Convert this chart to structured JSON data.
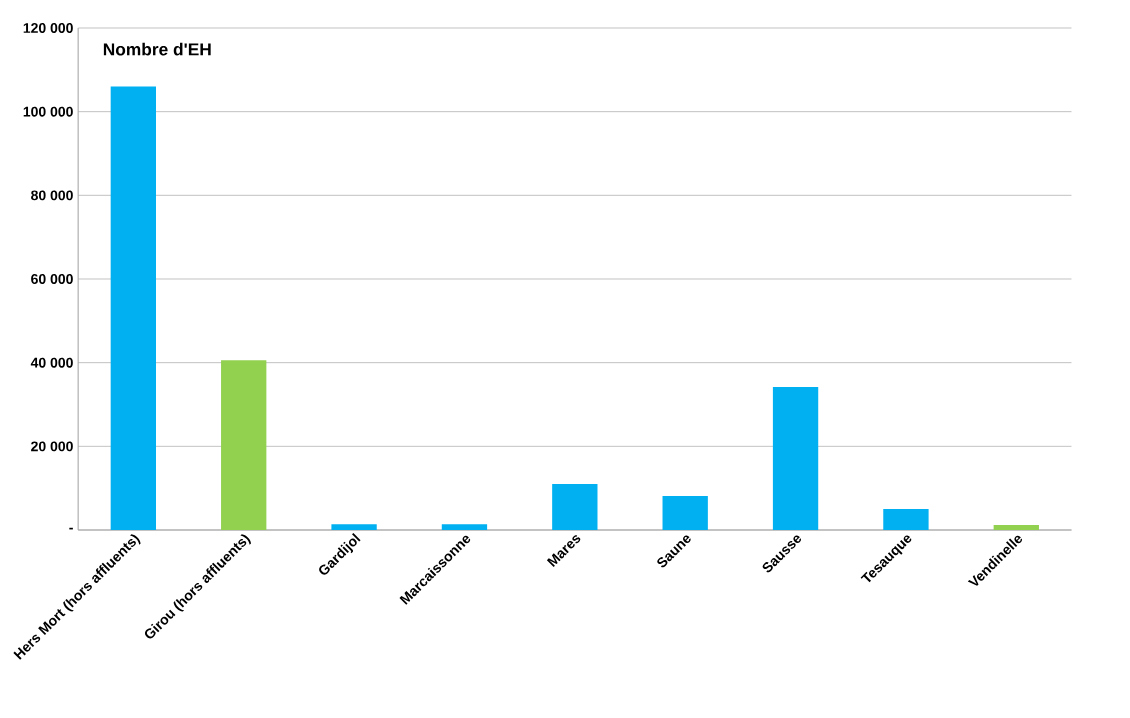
{
  "chart_data": {
    "type": "bar",
    "title": "Nombre d'EH",
    "categories": [
      "Hers Mort (hors affluents)",
      "Girou (hors affluents)",
      "Gardijol",
      "Marcaissonne",
      "Mares",
      "Saune",
      "Sausse",
      "Tesauque",
      "Vendinelle"
    ],
    "values": [
      106000,
      40600,
      1400,
      1400,
      11000,
      8100,
      34200,
      5000,
      1200
    ],
    "colors": [
      "#00b0f0",
      "#92d050",
      "#00b0f0",
      "#00b0f0",
      "#00b0f0",
      "#00b0f0",
      "#00b0f0",
      "#00b0f0",
      "#92d050"
    ],
    "ylim": [
      0,
      120000
    ],
    "yticks": [
      {
        "value": 0,
        "label": "-"
      },
      {
        "value": 20000,
        "label": "20 000"
      },
      {
        "value": 40000,
        "label": "40 000"
      },
      {
        "value": 60000,
        "label": "60 000"
      },
      {
        "value": 80000,
        "label": "80 000"
      },
      {
        "value": 100000,
        "label": "100 000"
      },
      {
        "value": 120000,
        "label": "120 000"
      }
    ],
    "grid": "y"
  }
}
